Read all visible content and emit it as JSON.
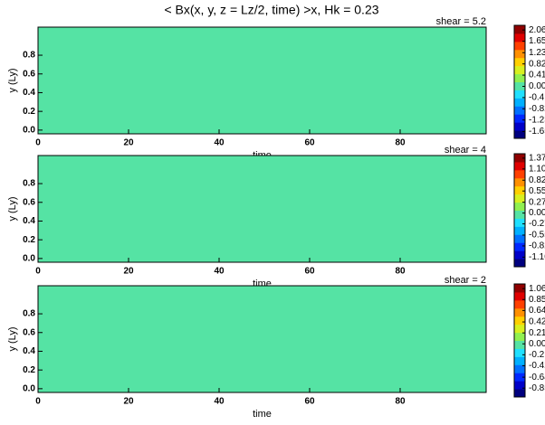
{
  "chart_data": [
    {
      "type": "heatmap",
      "title": "< Bx(x, y, z = Lz/2, time) >x,   Hk = 0.23",
      "label": "shear = 5.2",
      "xlabel": "time",
      "ylabel": "y (Ly)",
      "xlim": [
        0,
        99
      ],
      "ylim": [
        -0.04,
        1.1
      ],
      "xticks": [
        0,
        20,
        40,
        60,
        80
      ],
      "yticks": [
        {
          "value": 0,
          "label": "0.0"
        },
        0.2,
        0.4,
        0.6,
        0.8
      ],
      "clim": [
        -1.9,
        2.23
      ],
      "cbar_ticks": [
        2.06,
        1.65,
        1.23,
        0.82,
        0.41,
        {
          "value": 0,
          "label": "0.00"
        },
        -0.41,
        -0.82,
        -1.23,
        -1.65
      ],
      "background_color": "#55e3a4",
      "colormap": [
        "#00007f",
        "#0000c8",
        "#0028ff",
        "#0070ff",
        "#00b0ff",
        "#20e0ff",
        "#55e3a4",
        "#90f050",
        "#d8f020",
        "#ffd000",
        "#ff9000",
        "#ff4000",
        "#e00000",
        "#900000"
      ]
    },
    {
      "type": "heatmap",
      "label": "shear = 4",
      "xlabel": "time",
      "ylabel": "y (Ly)",
      "xlim": [
        0,
        99
      ],
      "ylim": [
        -0.04,
        1.1
      ],
      "xticks": [
        0,
        20,
        40,
        60,
        80
      ],
      "yticks": [
        {
          "value": 0,
          "label": "0.0"
        },
        0.2,
        0.4,
        0.6,
        0.8
      ],
      "clim": [
        -1.34,
        1.48
      ],
      "cbar_ticks": [
        1.37,
        {
          "value": 1.1,
          "label": "1.10"
        },
        0.82,
        0.55,
        0.27,
        {
          "value": 0,
          "label": "0.00"
        },
        -0.27,
        -0.55,
        -0.82,
        {
          "value": -1.1,
          "label": "-1.10"
        }
      ],
      "background_color": "#55e3a4",
      "colormap": [
        "#00007f",
        "#0000c8",
        "#0028ff",
        "#0070ff",
        "#00b0ff",
        "#20e0ff",
        "#55e3a4",
        "#90f050",
        "#d8f020",
        "#ffd000",
        "#ff9000",
        "#ff4000",
        "#e00000",
        "#900000"
      ]
    },
    {
      "type": "heatmap",
      "label": "shear = 2",
      "xlabel": "time",
      "ylabel": "y (Ly)",
      "xlim": [
        0,
        99
      ],
      "ylim": [
        -0.04,
        1.1
      ],
      "xticks": [
        0,
        20,
        40,
        60,
        80
      ],
      "yticks": [
        {
          "value": 0,
          "label": "0.0"
        },
        0.2,
        0.4,
        0.6,
        0.8
      ],
      "clim": [
        -1.02,
        1.15
      ],
      "cbar_ticks": [
        1.06,
        0.85,
        0.64,
        0.42,
        0.21,
        {
          "value": 0,
          "label": "0.00"
        },
        -0.21,
        -0.42,
        -0.64,
        -0.85
      ],
      "background_color": "#55e3a4",
      "colormap": [
        "#00007f",
        "#0000c8",
        "#0028ff",
        "#0070ff",
        "#00b0ff",
        "#20e0ff",
        "#55e3a4",
        "#90f050",
        "#d8f020",
        "#ffd000",
        "#ff9000",
        "#ff4000",
        "#e00000",
        "#900000"
      ]
    }
  ]
}
